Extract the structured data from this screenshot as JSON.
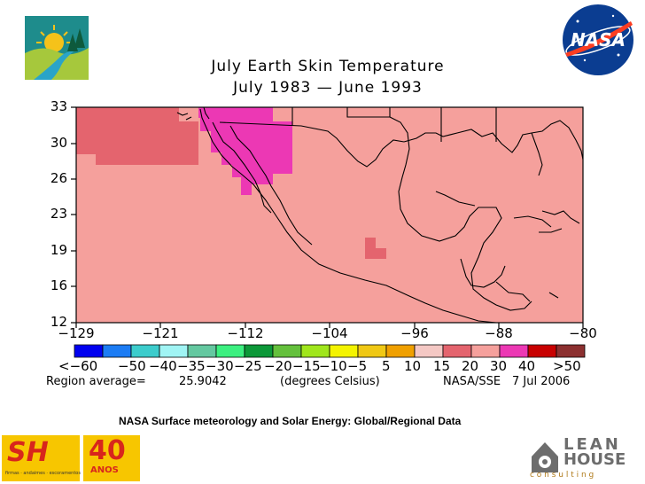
{
  "colors": {
    "background_land": "#f5a09c",
    "warm_patch": "#e4646e",
    "hot_patch": "#ec38b4",
    "ocean_patch": "#f9a09c"
  },
  "logos": {
    "top_left": "sun-landscape-logo",
    "top_right": "nasa-meatball-logo",
    "nasa_text": "NASA",
    "bottom_left_sh": "SH",
    "bottom_left_40": "40",
    "bottom_left_anos": "ANOS",
    "bottom_left_tagline": "firmas · andaimes · escoramentos",
    "bottom_right_lean": "LEAN",
    "bottom_right_house": "HOUSE",
    "bottom_right_consulting": "c o n s u l t i n g"
  },
  "map": {
    "title_line1": "July Earth Skin Temperature",
    "title_line2": "July 1983 — June 1993",
    "region_label": "Region average=",
    "region_value": "25.9042",
    "units": "(degrees Celsius)",
    "source": "NASA/SSE",
    "date": "7 Jul 2006"
  },
  "chart_data": {
    "type": "heatmap",
    "title": "July Earth Skin Temperature July 1983 — June 1993",
    "x_ticks": [
      "−129",
      "−121",
      "−112",
      "−104",
      "−96",
      "−88",
      "−80"
    ],
    "y_ticks": [
      "33",
      "30",
      "26",
      "23",
      "19",
      "16",
      "12"
    ],
    "xlim": [
      -129,
      -80
    ],
    "ylim": [
      12,
      33
    ],
    "legend_labels": [
      "<−60",
      "−50",
      "−40",
      "−35",
      "−30",
      "−25",
      "−20",
      "−15",
      "−10",
      "−5",
      "5",
      "10",
      "15",
      "20",
      "30",
      "40",
      ">50"
    ],
    "legend_colors": [
      "#0000f0",
      "#1c7cf4",
      "#3ccccc",
      "#a0f4f4",
      "#64c8a0",
      "#3cf080",
      "#0c9838",
      "#64c03c",
      "#a0e61c",
      "#f4f400",
      "#f0c814",
      "#f0a000",
      "#f4c8c4",
      "#e4646e",
      "#f5a09c",
      "#ec38b4",
      "#c80000",
      "#8c3030"
    ],
    "region_average": 25.9042,
    "units": "degrees Celsius"
  },
  "caption": "NASA Surface meteorology and Solar Energy: Global/Regional Data"
}
